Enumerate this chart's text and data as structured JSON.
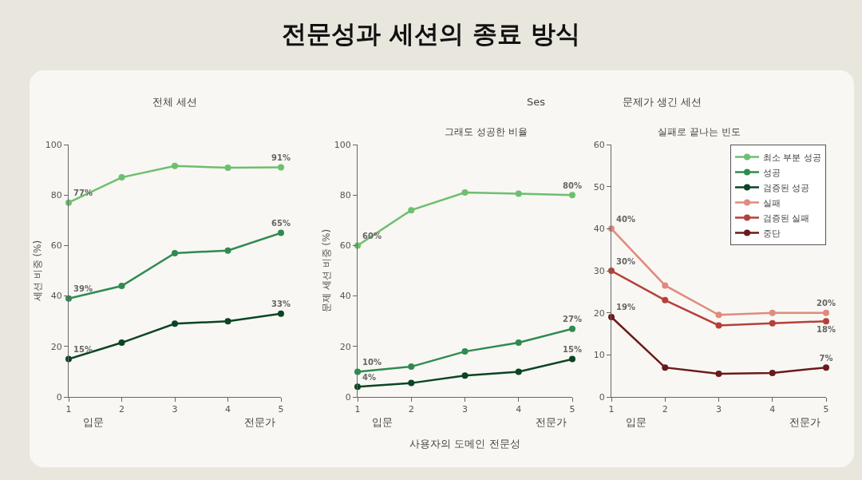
{
  "chart_data": [
    {
      "type": "line",
      "title": "전체 세션",
      "ylabel": "세션 비중 (%)",
      "annotations": [
        "입문",
        "전문가"
      ],
      "x": [
        1,
        2,
        3,
        4,
        5
      ],
      "xlim": [
        1,
        5
      ],
      "xticks": [
        1,
        2,
        3,
        4,
        5
      ],
      "ylim": [
        0,
        100
      ],
      "yticks": [
        0,
        20,
        40,
        60,
        80,
        100
      ],
      "grid": false,
      "legend": false,
      "marker": "circle",
      "line_style": "solid",
      "series": [
        {
          "color": "#6dbf6f",
          "values": [
            77,
            87,
            91.5,
            90.8,
            91
          ],
          "value_labels": [
            "77%",
            null,
            null,
            null,
            "91%"
          ]
        },
        {
          "color": "#2e8b50",
          "values": [
            39,
            44,
            57,
            58,
            65
          ],
          "value_labels": [
            "39%",
            null,
            null,
            null,
            "65%"
          ]
        },
        {
          "color": "#0b4523",
          "values": [
            15,
            21.5,
            29,
            30,
            33
          ],
          "value_labels": [
            "15%",
            null,
            null,
            null,
            "33%"
          ]
        }
      ]
    },
    {
      "type": "line",
      "title": "전문성과 세션의 종료 방식",
      "subtitle": "그래도 성공한 비율",
      "ylabel": "문제 세션 비중 (%)",
      "xlabel": "사용자의 도메인 전문성",
      "annotations": [
        "입문",
        "전문가",
        "Ses"
      ],
      "x": [
        1,
        2,
        3,
        4,
        5
      ],
      "xlim": [
        1,
        5
      ],
      "xticks": [
        1,
        2,
        3,
        4,
        5
      ],
      "ylim": [
        0,
        100
      ],
      "yticks": [
        0,
        20,
        40,
        60,
        80,
        100
      ],
      "grid": false,
      "legend": false,
      "marker": "circle",
      "line_style": "solid",
      "series": [
        {
          "color": "#6dbf6f",
          "values": [
            60,
            74,
            81,
            80.5,
            80
          ],
          "value_labels": [
            "60%",
            null,
            null,
            null,
            "80%"
          ]
        },
        {
          "color": "#2e8b50",
          "values": [
            10,
            12,
            18,
            21.5,
            27
          ],
          "value_labels": [
            "10%",
            null,
            null,
            null,
            "27%"
          ]
        },
        {
          "color": "#0b4523",
          "values": [
            4,
            5.5,
            8.5,
            10,
            15
          ],
          "value_labels": [
            "4%",
            null,
            null,
            null,
            "15%"
          ]
        }
      ]
    },
    {
      "type": "line",
      "title": "문제가 생긴 세션",
      "subtitle": "실패로 끝나는 빈도",
      "annotations": [
        "입문",
        "전문가"
      ],
      "x": [
        1,
        2,
        3,
        4,
        5
      ],
      "xlim": [
        1,
        5
      ],
      "xticks": [
        1,
        2,
        3,
        4,
        5
      ],
      "ylim": [
        0,
        60
      ],
      "yticks": [
        0,
        10,
        20,
        30,
        40,
        50,
        60
      ],
      "grid": false,
      "legend": "top right",
      "marker": "circle",
      "line_style": "solid",
      "series": [
        {
          "name": "최소 부분 성공",
          "color": "#6dbf6f",
          "values": [
            null,
            null,
            null,
            null,
            null
          ]
        },
        {
          "name": "성공",
          "color": "#2e8b50",
          "values": [
            null,
            null,
            null,
            null,
            null
          ]
        },
        {
          "name": "검증된 성공",
          "color": "#0b4523",
          "values": [
            null,
            null,
            null,
            null,
            null
          ]
        },
        {
          "name": "실패",
          "color": "#e08b7d",
          "values": [
            40,
            26.5,
            19.5,
            20,
            20
          ],
          "value_labels": [
            "40%",
            null,
            null,
            null,
            "20%"
          ]
        },
        {
          "name": "검증된 실패",
          "color": "#b5403a",
          "values": [
            30,
            23,
            17,
            17.5,
            18
          ],
          "value_labels": [
            "30%",
            null,
            null,
            null,
            "18%"
          ]
        },
        {
          "name": "중단",
          "color": "#6b1a1c",
          "values": [
            19,
            7,
            5.5,
            5.7,
            7
          ],
          "value_labels": [
            "19%",
            null,
            null,
            null,
            "7%"
          ]
        }
      ]
    }
  ]
}
